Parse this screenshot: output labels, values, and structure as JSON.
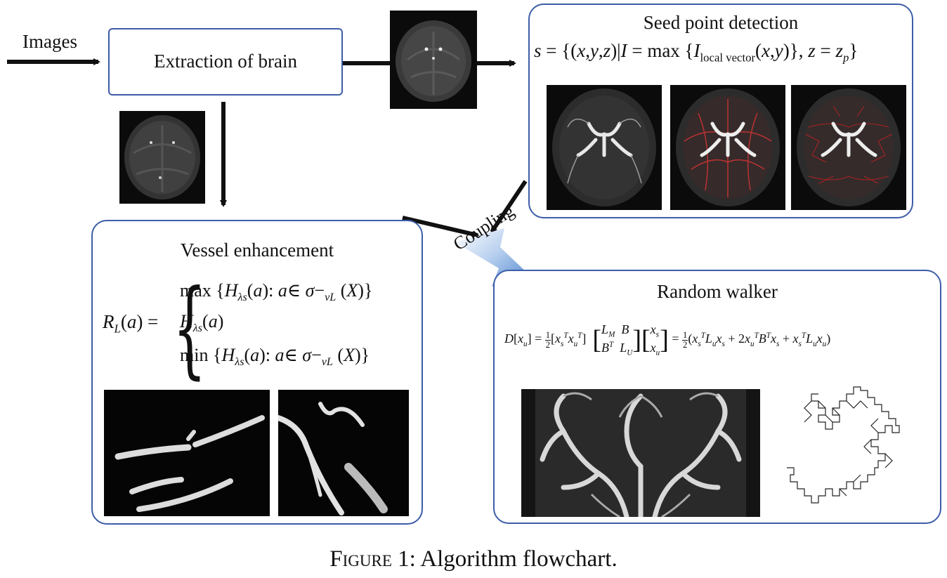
{
  "input_label": "Images",
  "extraction_label": "Extraction of brain",
  "seed": {
    "title": "Seed point detection",
    "formula_text": "s = {(x,y,z)|I = max {I local vector (x,y)}, z = z p}",
    "sub_local_vector": "local vector",
    "sub_p": "p"
  },
  "vessel": {
    "title": "Vessel enhancement",
    "formula_lhs": "R L (a) =",
    "case1": "max {H λs (a): a∈ σ− vL (X)}",
    "case2": "H λs (a)",
    "case3": "min {H λs (a): a∈ σ− vL (X)}"
  },
  "coupling_label": "Coupling",
  "walker": {
    "title": "Random walker",
    "formula_text": "D[x u] = 1/2[x s T x u T] [L M B; B T L U][x s; x u] = 1/2(x s T L u x s + 2x u T B T x s + x s T L u x u)"
  },
  "caption": {
    "prefix": "Figure 1:",
    "text": " Algorithm flowchart."
  },
  "colors": {
    "box_border": "#3d5da8",
    "arrow": "#111111",
    "coupling_arrow": "#6f9fd8"
  }
}
